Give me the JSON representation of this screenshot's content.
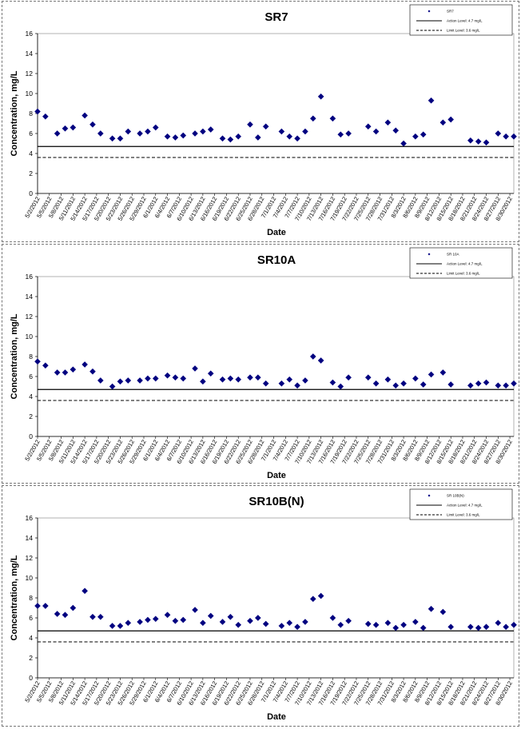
{
  "x_tick_labels": [
    "5/2/2012",
    "5/5/2012",
    "5/8/2012",
    "5/11/2012",
    "5/14/2012",
    "5/17/2012",
    "5/20/2012",
    "5/23/2012",
    "5/26/2012",
    "5/29/2012",
    "6/1/2012",
    "6/4/2012",
    "6/7/2012",
    "6/10/2012",
    "6/13/2012",
    "6/16/2012",
    "6/19/2012",
    "6/22/2012",
    "6/25/2012",
    "6/28/2012",
    "7/1/2012",
    "7/4/2012",
    "7/7/2012",
    "7/10/2012",
    "7/13/2012",
    "7/16/2012",
    "7/19/2012",
    "7/22/2012",
    "7/25/2012",
    "7/28/2012",
    "7/31/2012",
    "8/3/2012",
    "8/6/2012",
    "8/9/2012",
    "8/12/2012",
    "8/15/2012",
    "8/18/2012",
    "8/21/2012",
    "8/24/2012",
    "8/27/2012",
    "8/30/2012"
  ],
  "chart_data": [
    {
      "type": "scatter",
      "title": "SR7",
      "xlabel": "Date",
      "ylabel": "Concentration, mg/L",
      "ylim": [
        0,
        16
      ],
      "y_ticks": [
        0,
        2,
        4,
        6,
        8,
        10,
        12,
        14,
        16
      ],
      "xlim": [
        "5/2/2012",
        "8/31/2012"
      ],
      "legend_position": "top-right",
      "legend": [
        "SR7",
        "Action Level: 4.7 mg/L",
        "Limit Level: 3.6 mg/L"
      ],
      "reference_lines": [
        {
          "label": "Action Level: 4.7 mg/L",
          "value": 4.7,
          "style": "solid"
        },
        {
          "label": "Limit Level: 3.6 mg/L",
          "value": 3.6,
          "style": "dashed"
        }
      ],
      "series": [
        {
          "name": "SR7",
          "color": "#000080",
          "marker": "diamond",
          "points": [
            [
              "5/2/2012",
              8.2
            ],
            [
              "5/4/2012",
              7.7
            ],
            [
              "5/7/2012",
              6.0
            ],
            [
              "5/9/2012",
              6.5
            ],
            [
              "5/11/2012",
              6.6
            ],
            [
              "5/14/2012",
              7.8
            ],
            [
              "5/16/2012",
              6.9
            ],
            [
              "5/18/2012",
              6.0
            ],
            [
              "5/21/2012",
              5.5
            ],
            [
              "5/23/2012",
              5.5
            ],
            [
              "5/25/2012",
              6.2
            ],
            [
              "5/28/2012",
              6.0
            ],
            [
              "5/30/2012",
              6.2
            ],
            [
              "6/1/2012",
              6.6
            ],
            [
              "6/4/2012",
              5.7
            ],
            [
              "6/6/2012",
              5.6
            ],
            [
              "6/8/2012",
              5.8
            ],
            [
              "6/11/2012",
              6.0
            ],
            [
              "6/13/2012",
              6.2
            ],
            [
              "6/15/2012",
              6.4
            ],
            [
              "6/18/2012",
              5.5
            ],
            [
              "6/20/2012",
              5.4
            ],
            [
              "6/22/2012",
              5.7
            ],
            [
              "6/25/2012",
              6.9
            ],
            [
              "6/27/2012",
              5.6
            ],
            [
              "6/29/2012",
              6.7
            ],
            [
              "7/3/2012",
              6.2
            ],
            [
              "7/5/2012",
              5.7
            ],
            [
              "7/7/2012",
              5.5
            ],
            [
              "7/9/2012",
              6.2
            ],
            [
              "7/11/2012",
              7.5
            ],
            [
              "7/13/2012",
              9.7
            ],
            [
              "7/16/2012",
              7.5
            ],
            [
              "7/18/2012",
              5.9
            ],
            [
              "7/20/2012",
              6.0
            ],
            [
              "7/25/2012",
              6.7
            ],
            [
              "7/27/2012",
              6.2
            ],
            [
              "7/30/2012",
              7.1
            ],
            [
              "8/1/2012",
              6.3
            ],
            [
              "8/3/2012",
              5.0
            ],
            [
              "8/6/2012",
              5.7
            ],
            [
              "8/8/2012",
              5.9
            ],
            [
              "8/10/2012",
              9.3
            ],
            [
              "8/13/2012",
              7.1
            ],
            [
              "8/15/2012",
              7.4
            ],
            [
              "8/20/2012",
              5.3
            ],
            [
              "8/22/2012",
              5.2
            ],
            [
              "8/24/2012",
              5.1
            ],
            [
              "8/27/2012",
              6.0
            ],
            [
              "8/29/2012",
              5.7
            ],
            [
              "8/31/2012",
              5.7
            ]
          ]
        }
      ]
    },
    {
      "type": "scatter",
      "title": "SR10A",
      "xlabel": "Date",
      "ylabel": "Concentration, mg/L",
      "ylim": [
        0,
        16
      ],
      "y_ticks": [
        0,
        2,
        4,
        6,
        8,
        10,
        12,
        14,
        16
      ],
      "xlim": [
        "5/2/2012",
        "8/31/2012"
      ],
      "legend_position": "top-right",
      "legend": [
        "SR 10A",
        "Action Level: 4.7 mg/L",
        "Limit Level: 3.6 mg/L"
      ],
      "reference_lines": [
        {
          "label": "Action Level: 4.7 mg/L",
          "value": 4.7,
          "style": "solid"
        },
        {
          "label": "Limit Level: 3.6 mg/L",
          "value": 3.6,
          "style": "dashed"
        }
      ],
      "series": [
        {
          "name": "SR 10A",
          "color": "#000080",
          "marker": "diamond",
          "points": [
            [
              "5/2/2012",
              7.5
            ],
            [
              "5/4/2012",
              7.1
            ],
            [
              "5/7/2012",
              6.4
            ],
            [
              "5/9/2012",
              6.4
            ],
            [
              "5/11/2012",
              6.7
            ],
            [
              "5/14/2012",
              7.2
            ],
            [
              "5/16/2012",
              6.5
            ],
            [
              "5/18/2012",
              5.6
            ],
            [
              "5/21/2012",
              5.0
            ],
            [
              "5/23/2012",
              5.5
            ],
            [
              "5/25/2012",
              5.6
            ],
            [
              "5/28/2012",
              5.6
            ],
            [
              "5/30/2012",
              5.8
            ],
            [
              "6/1/2012",
              5.8
            ],
            [
              "6/4/2012",
              6.1
            ],
            [
              "6/6/2012",
              5.9
            ],
            [
              "6/8/2012",
              5.8
            ],
            [
              "6/11/2012",
              6.8
            ],
            [
              "6/13/2012",
              5.5
            ],
            [
              "6/15/2012",
              6.3
            ],
            [
              "6/18/2012",
              5.7
            ],
            [
              "6/20/2012",
              5.8
            ],
            [
              "6/22/2012",
              5.7
            ],
            [
              "6/25/2012",
              5.9
            ],
            [
              "6/27/2012",
              5.9
            ],
            [
              "6/29/2012",
              5.3
            ],
            [
              "7/3/2012",
              5.3
            ],
            [
              "7/5/2012",
              5.7
            ],
            [
              "7/7/2012",
              5.1
            ],
            [
              "7/9/2012",
              5.6
            ],
            [
              "7/11/2012",
              8.0
            ],
            [
              "7/13/2012",
              7.6
            ],
            [
              "7/16/2012",
              5.4
            ],
            [
              "7/18/2012",
              5.0
            ],
            [
              "7/20/2012",
              5.9
            ],
            [
              "7/25/2012",
              5.9
            ],
            [
              "7/27/2012",
              5.3
            ],
            [
              "7/30/2012",
              5.7
            ],
            [
              "8/1/2012",
              5.1
            ],
            [
              "8/3/2012",
              5.3
            ],
            [
              "8/6/2012",
              5.8
            ],
            [
              "8/8/2012",
              5.2
            ],
            [
              "8/10/2012",
              6.2
            ],
            [
              "8/13/2012",
              6.4
            ],
            [
              "8/15/2012",
              5.2
            ],
            [
              "8/20/2012",
              5.1
            ],
            [
              "8/22/2012",
              5.3
            ],
            [
              "8/24/2012",
              5.4
            ],
            [
              "8/27/2012",
              5.1
            ],
            [
              "8/29/2012",
              5.1
            ],
            [
              "8/31/2012",
              5.3
            ]
          ]
        }
      ]
    },
    {
      "type": "scatter",
      "title": "SR10B(N)",
      "xlabel": "Date",
      "ylabel": "Concentration, mg/L",
      "ylim": [
        0,
        16
      ],
      "y_ticks": [
        0,
        2,
        4,
        6,
        8,
        10,
        12,
        14,
        16
      ],
      "xlim": [
        "5/2/2012",
        "8/31/2012"
      ],
      "legend_position": "top-right",
      "legend": [
        "SR 10B(N)",
        "Action Level: 4.7 mg/L",
        "Limit Level: 3.6 mg/L"
      ],
      "reference_lines": [
        {
          "label": "Action Level: 4.7 mg/L",
          "value": 4.7,
          "style": "solid"
        },
        {
          "label": "Limit Level: 3.6 mg/L",
          "value": 3.6,
          "style": "dashed"
        }
      ],
      "series": [
        {
          "name": "SR 10B(N)",
          "color": "#000080",
          "marker": "diamond",
          "points": [
            [
              "5/2/2012",
              7.2
            ],
            [
              "5/4/2012",
              7.2
            ],
            [
              "5/7/2012",
              6.4
            ],
            [
              "5/9/2012",
              6.3
            ],
            [
              "5/11/2012",
              7.0
            ],
            [
              "5/14/2012",
              8.7
            ],
            [
              "5/16/2012",
              6.1
            ],
            [
              "5/18/2012",
              6.1
            ],
            [
              "5/21/2012",
              5.2
            ],
            [
              "5/23/2012",
              5.2
            ],
            [
              "5/25/2012",
              5.5
            ],
            [
              "5/28/2012",
              5.6
            ],
            [
              "5/30/2012",
              5.8
            ],
            [
              "6/1/2012",
              5.9
            ],
            [
              "6/4/2012",
              6.3
            ],
            [
              "6/6/2012",
              5.7
            ],
            [
              "6/8/2012",
              5.8
            ],
            [
              "6/11/2012",
              6.8
            ],
            [
              "6/13/2012",
              5.5
            ],
            [
              "6/15/2012",
              6.2
            ],
            [
              "6/18/2012",
              5.6
            ],
            [
              "6/20/2012",
              6.1
            ],
            [
              "6/22/2012",
              5.3
            ],
            [
              "6/25/2012",
              5.7
            ],
            [
              "6/27/2012",
              6.0
            ],
            [
              "6/29/2012",
              5.4
            ],
            [
              "7/3/2012",
              5.2
            ],
            [
              "7/5/2012",
              5.5
            ],
            [
              "7/7/2012",
              5.1
            ],
            [
              "7/9/2012",
              5.6
            ],
            [
              "7/11/2012",
              7.9
            ],
            [
              "7/13/2012",
              8.2
            ],
            [
              "7/16/2012",
              6.0
            ],
            [
              "7/18/2012",
              5.3
            ],
            [
              "7/20/2012",
              5.7
            ],
            [
              "7/25/2012",
              5.4
            ],
            [
              "7/27/2012",
              5.3
            ],
            [
              "7/30/2012",
              5.5
            ],
            [
              "8/1/2012",
              5.0
            ],
            [
              "8/3/2012",
              5.3
            ],
            [
              "8/6/2012",
              5.6
            ],
            [
              "8/8/2012",
              5.0
            ],
            [
              "8/10/2012",
              6.9
            ],
            [
              "8/13/2012",
              6.6
            ],
            [
              "8/15/2012",
              5.1
            ],
            [
              "8/20/2012",
              5.1
            ],
            [
              "8/22/2012",
              5.0
            ],
            [
              "8/24/2012",
              5.1
            ],
            [
              "8/27/2012",
              5.5
            ],
            [
              "8/29/2012",
              5.1
            ],
            [
              "8/31/2012",
              5.3
            ]
          ]
        }
      ]
    }
  ]
}
